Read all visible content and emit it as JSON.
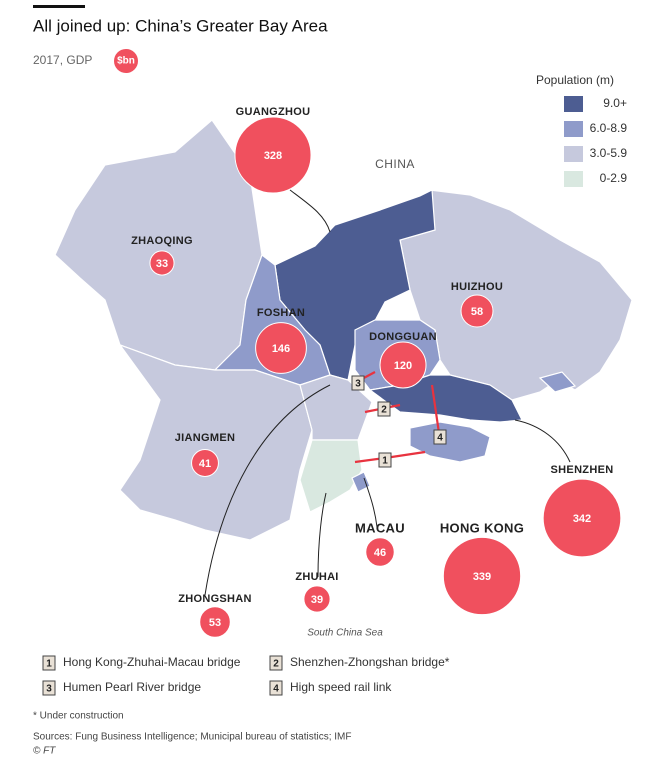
{
  "title": "All joined up: China’s Greater Bay Area",
  "subtitle": "2017, GDP",
  "unit_badge": "$bn",
  "legend": {
    "title": "Population (m)",
    "classes": [
      {
        "label": "9.0+",
        "color": "#4d5d92"
      },
      {
        "label": "6.0-8.9",
        "color": "#8f9bca"
      },
      {
        "label": "3.0-5.9",
        "color": "#c6c9dd"
      },
      {
        "label": "0-2.9",
        "color": "#d9e8e0"
      }
    ]
  },
  "map_labels": {
    "country": "CHINA",
    "sea": "South China Sea"
  },
  "bubble_color": "#f0505e",
  "cities": [
    {
      "name": "GUANGZHOU",
      "gdp": 328
    },
    {
      "name": "ZHAOQING",
      "gdp": 33
    },
    {
      "name": "FOSHAN",
      "gdp": 146
    },
    {
      "name": "DONGGUAN",
      "gdp": 120
    },
    {
      "name": "HUIZHOU",
      "gdp": 58
    },
    {
      "name": "JIANGMEN",
      "gdp": 41
    },
    {
      "name": "MACAU",
      "gdp": 46
    },
    {
      "name": "ZHUHAI",
      "gdp": 39
    },
    {
      "name": "ZHONGSHAN",
      "gdp": 53
    },
    {
      "name": "HONG KONG",
      "gdp": 339
    },
    {
      "name": "SHENZHEN",
      "gdp": 342
    }
  ],
  "links": [
    {
      "number": "1",
      "label": "Hong Kong-Zhuhai-Macau bridge"
    },
    {
      "number": "2",
      "label": "Shenzhen-Zhongshan bridge*"
    },
    {
      "number": "3",
      "label": "Humen Pearl River bridge"
    },
    {
      "number": "4",
      "label": "High speed rail link"
    }
  ],
  "footnote": "* Under construction",
  "sources": "Sources: Fung Business Intelligence; Municipal bureau of statistics; IMF",
  "credit": "© FT"
}
